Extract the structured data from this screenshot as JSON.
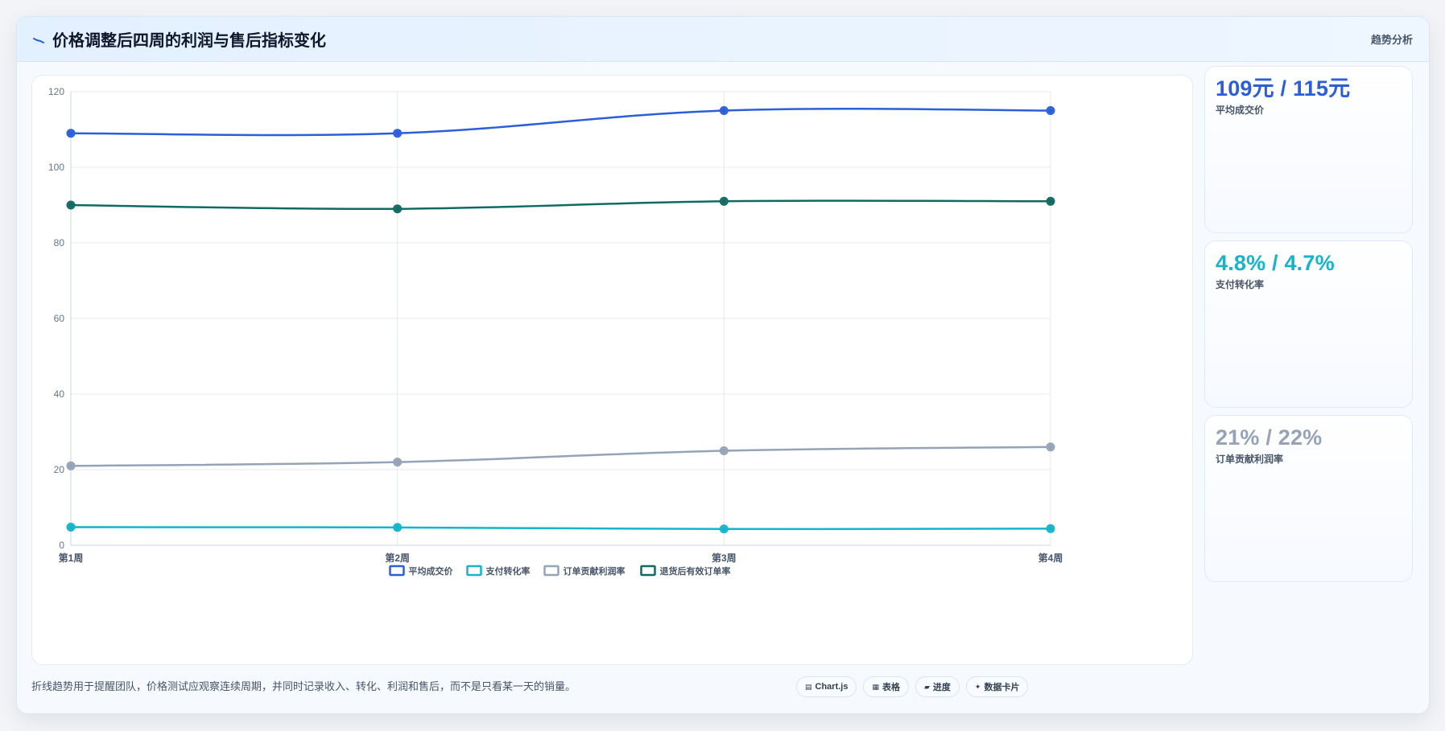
{
  "header": {
    "title": "价格调整后四周的利润与售后指标变化",
    "badge": "趋势分析",
    "icon": "trend-line-icon"
  },
  "chart_data": {
    "type": "line",
    "categories": [
      "第1周",
      "第2周",
      "第3周",
      "第4周"
    ],
    "ylim": [
      0,
      120
    ],
    "yticks": [
      0,
      20,
      40,
      60,
      80,
      100,
      120
    ],
    "grid": true,
    "legend_position": "bottom",
    "series": [
      {
        "name": "平均成交价",
        "values": [
          109,
          109,
          115,
          115
        ],
        "color": "#2b5fd9"
      },
      {
        "name": "支付转化率",
        "values": [
          4.8,
          4.7,
          4.3,
          4.4
        ],
        "color": "#14b4cc"
      },
      {
        "name": "订单贡献利润率",
        "values": [
          21,
          22,
          25,
          26
        ],
        "color": "#94a3b8"
      },
      {
        "name": "退货后有效订单率",
        "values": [
          90,
          89,
          91,
          91
        ],
        "color": "#0f6b62"
      }
    ]
  },
  "kpis": [
    {
      "value": "109元 / 115元",
      "label": "平均成交价",
      "color": "#2b5fd9"
    },
    {
      "value": "4.8% / 4.7%",
      "label": "支付转化率",
      "color": "#14b4cc"
    },
    {
      "value": "21% / 22%",
      "label": "订单贡献利润率",
      "color": "#94a3b8"
    }
  ],
  "footer": {
    "note": "折线趋势用于提醒团队，价格测试应观察连续周期，并同时记录收入、转化、利润和售后，而不是只看某一天的销量。",
    "chips": [
      {
        "label": "Chart.js",
        "icon": "chart-icon"
      },
      {
        "label": "表格",
        "icon": "table-icon"
      },
      {
        "label": "进度",
        "icon": "progress-icon"
      },
      {
        "label": "数据卡片",
        "icon": "sparkle-icon"
      }
    ]
  }
}
